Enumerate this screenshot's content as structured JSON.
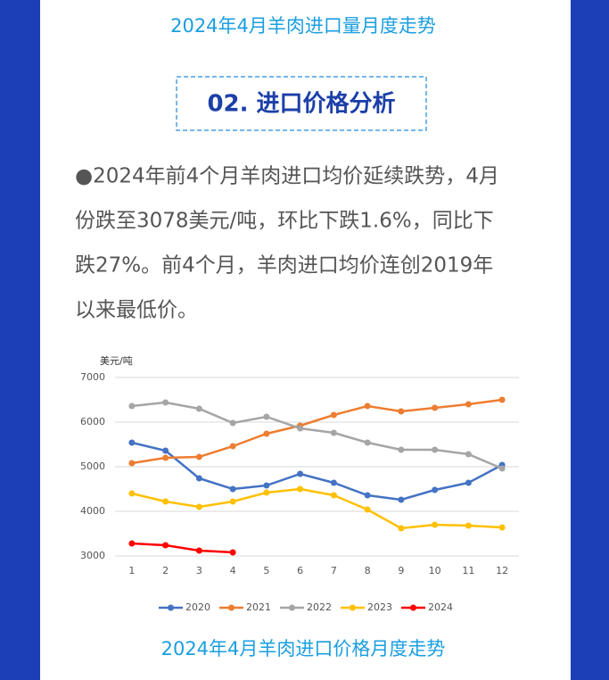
{
  "top_caption": "2024年4月羊肉进口量月度走势",
  "section_title": "02. 进口价格分析",
  "paragraph": [
    "●2024年前4个月羊肉进口均价延续跌势，4月",
    "份跌至3078美元/吨，环比下跌1.6%，同比下",
    "跌27%。前4个月，羊肉进口均价连创2019年",
    "以来最低价。"
  ],
  "chart_data": {
    "type": "line",
    "y_label": "美元/吨",
    "categories": [
      "1",
      "2",
      "3",
      "4",
      "5",
      "6",
      "7",
      "8",
      "9",
      "10",
      "11",
      "12"
    ],
    "series": [
      {
        "name": "2020",
        "color": "#4472c4",
        "values": [
          5540,
          5360,
          4740,
          4500,
          4580,
          4840,
          4640,
          4360,
          4260,
          4480,
          4640,
          5040
        ]
      },
      {
        "name": "2021",
        "color": "#ed7d31",
        "values": [
          5080,
          5200,
          5220,
          5460,
          5740,
          5920,
          6160,
          6360,
          6240,
          6320,
          6400,
          6500
        ]
      },
      {
        "name": "2022",
        "color": "#a5a5a5",
        "values": [
          6360,
          6440,
          6300,
          5980,
          6120,
          5860,
          5760,
          5540,
          5380,
          5380,
          5280,
          4960
        ]
      },
      {
        "name": "2023",
        "color": "#ffc000",
        "values": [
          4400,
          4220,
          4100,
          4220,
          4420,
          4500,
          4360,
          4040,
          3620,
          3700,
          3680,
          3640
        ]
      },
      {
        "name": "2024",
        "color": "#ff0000",
        "values": [
          3280,
          3240,
          3120,
          3080,
          null,
          null,
          null,
          null,
          null,
          null,
          null,
          null
        ]
      }
    ],
    "ylim": [
      3000,
      7000
    ],
    "yticks": [
      3000,
      4000,
      5000,
      6000,
      7000
    ],
    "grid": true,
    "legend": "bottom"
  },
  "bottom_caption": "2024年4月羊肉进口价格月度走势"
}
